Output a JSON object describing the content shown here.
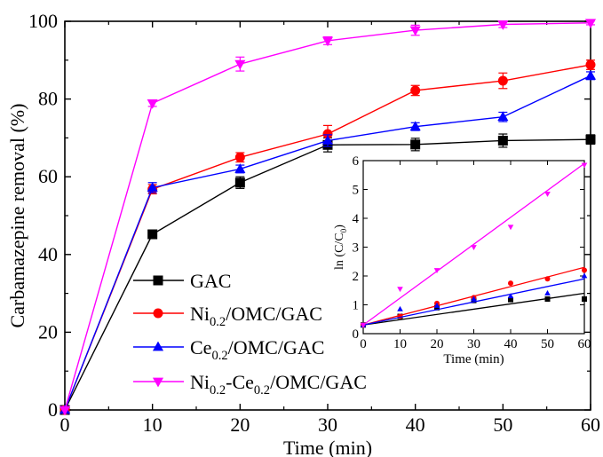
{
  "chart_data": [
    {
      "type": "line",
      "xlabel": "Time (min)",
      "ylabel": "Carbamazepine removal (%)",
      "xlim": [
        0,
        60
      ],
      "ylim": [
        0,
        100
      ],
      "xticks": [
        0,
        10,
        20,
        30,
        40,
        50,
        60
      ],
      "yticks": [
        0,
        20,
        40,
        60,
        80,
        100
      ],
      "legend_position": "bottom-left",
      "x": [
        0,
        10,
        20,
        30,
        40,
        50,
        60
      ],
      "series": [
        {
          "name": "GAC",
          "legend": [
            {
              "t": "GAC"
            }
          ],
          "color": "#000000",
          "marker": "square",
          "values": [
            0,
            45.2,
            58.5,
            68.2,
            68.3,
            69.3,
            69.6
          ],
          "errors": [
            0,
            1.0,
            1.5,
            1.8,
            1.6,
            1.7,
            1.2
          ]
        },
        {
          "name": "Ni0.2/OMC/GAC",
          "legend": [
            {
              "t": "Ni"
            },
            {
              "t": "0.2",
              "sub": true
            },
            {
              "t": "/OMC/GAC"
            }
          ],
          "color": "#ff0000",
          "marker": "circle",
          "values": [
            0,
            56.8,
            65.0,
            71.0,
            82.2,
            84.7,
            88.8
          ],
          "errors": [
            0,
            1.2,
            1.2,
            2.2,
            1.3,
            2.0,
            1.2
          ]
        },
        {
          "name": "Ce0.2/OMC/GAC",
          "legend": [
            {
              "t": "Ce"
            },
            {
              "t": "0.2",
              "sub": true
            },
            {
              "t": "/OMC/GAC"
            }
          ],
          "color": "#0000ff",
          "marker": "triangle-up",
          "values": [
            0,
            57.2,
            62.0,
            69.3,
            72.9,
            75.4,
            86.0
          ],
          "errors": [
            0,
            1.3,
            1.0,
            1.5,
            1.0,
            1.2,
            1.0
          ]
        },
        {
          "name": "Ni0.2-Ce0.2/OMC/GAC",
          "legend": [
            {
              "t": "Ni"
            },
            {
              "t": "0.2",
              "sub": true
            },
            {
              "t": "-Ce"
            },
            {
              "t": "0.2",
              "sub": true
            },
            {
              "t": "/OMC/GAC"
            }
          ],
          "color": "#ff00ff",
          "marker": "triangle-down",
          "values": [
            0,
            78.9,
            89.0,
            95.0,
            97.7,
            99.2,
            99.6
          ],
          "errors": [
            0,
            0.8,
            1.8,
            1.0,
            1.3,
            0.8,
            0.5
          ]
        }
      ]
    },
    {
      "type": "scatter",
      "inset": true,
      "xlabel": "Time (min)",
      "ylabel_parts": [
        {
          "t": "ln (C/C"
        },
        {
          "t": "0",
          "sub": true
        },
        {
          "t": ")"
        }
      ],
      "xlim": [
        0,
        60
      ],
      "ylim": [
        0,
        6
      ],
      "xticks": [
        0,
        10,
        20,
        30,
        40,
        50,
        60
      ],
      "yticks": [
        0,
        1,
        2,
        3,
        4,
        5,
        6
      ],
      "x": [
        0,
        10,
        20,
        30,
        40,
        50,
        60
      ],
      "series": [
        {
          "name": "GAC",
          "color": "#000000",
          "marker": "square",
          "values": [
            0.3,
            0.6,
            0.9,
            1.15,
            1.18,
            1.2,
            1.2
          ],
          "fit": [
            0.3,
            1.4
          ]
        },
        {
          "name": "Ni0.2/OMC/GAC",
          "color": "#ff0000",
          "marker": "circle",
          "values": [
            0.3,
            0.6,
            1.05,
            1.25,
            1.75,
            1.9,
            2.2
          ],
          "fit": [
            0.3,
            2.3
          ]
        },
        {
          "name": "Ce0.2/OMC/GAC",
          "color": "#0000ff",
          "marker": "triangle-up",
          "values": [
            0.3,
            0.85,
            0.97,
            1.2,
            1.3,
            1.4,
            2.0
          ],
          "fit": [
            0.3,
            1.9
          ]
        },
        {
          "name": "Ni0.2-Ce0.2/OMC/GAC",
          "color": "#ff00ff",
          "marker": "triangle-down",
          "values": [
            0.3,
            1.55,
            2.2,
            3.0,
            3.7,
            4.85,
            5.85
          ],
          "fit": [
            0.3,
            5.9
          ]
        }
      ]
    }
  ]
}
